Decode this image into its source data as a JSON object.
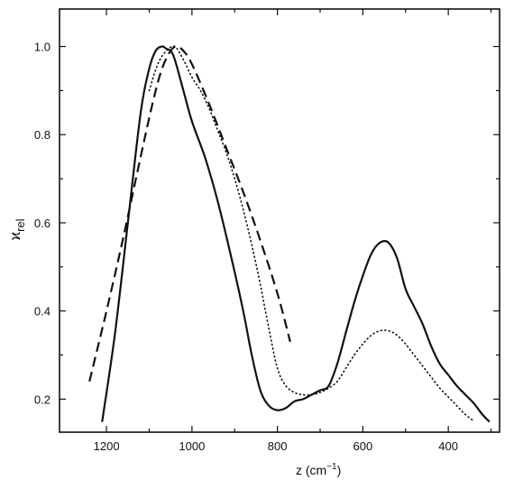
{
  "chart_data": {
    "type": "line",
    "title": "",
    "xlabel": "z (cm⁻¹)",
    "xlabel_parts": {
      "text": "z (cm",
      "sup": "−1",
      "close": ")"
    },
    "ylabel": "ϰrel",
    "ylabel_parts": {
      "symbol": "ϰ",
      "sub": "rel"
    },
    "xlim": [
      1310,
      280
    ],
    "ylim": [
      0.125,
      1.085
    ],
    "x_reversed": true,
    "x_ticks": [
      1200,
      1000,
      800,
      600,
      400
    ],
    "x_minor_ticks": [
      1100,
      900,
      700,
      500,
      300
    ],
    "y_ticks": [
      0.2,
      0.4,
      0.6,
      0.8,
      1.0
    ],
    "y_minor_ticks": [
      0.3,
      0.5,
      0.7,
      0.9
    ],
    "x_tick_labels": [
      "1200",
      "1000",
      "800",
      "600",
      "400"
    ],
    "y_tick_labels": [
      "0.2",
      "0.4",
      "0.6",
      "0.8",
      "1.0"
    ],
    "grid": false,
    "legend": "none",
    "series": [
      {
        "style": "solid",
        "color": "#111111",
        "x": [
          1210,
          1180,
          1150,
          1120,
          1100,
          1085,
          1070,
          1060,
          1050,
          1040,
          1020,
          1000,
          970,
          940,
          910,
          880,
          860,
          840,
          820,
          800,
          780,
          760,
          740,
          720,
          700,
          680,
          660,
          640,
          620,
          600,
          580,
          560,
          540,
          520,
          500,
          480,
          460,
          440,
          420,
          400,
          380,
          360,
          340,
          320,
          305
        ],
        "y": [
          0.15,
          0.35,
          0.6,
          0.85,
          0.95,
          0.99,
          1.0,
          0.995,
          0.99,
          0.97,
          0.9,
          0.83,
          0.75,
          0.65,
          0.53,
          0.4,
          0.3,
          0.22,
          0.185,
          0.175,
          0.18,
          0.195,
          0.2,
          0.21,
          0.22,
          0.23,
          0.28,
          0.35,
          0.42,
          0.48,
          0.53,
          0.555,
          0.555,
          0.52,
          0.45,
          0.41,
          0.37,
          0.32,
          0.28,
          0.255,
          0.23,
          0.21,
          0.19,
          0.165,
          0.15
        ]
      },
      {
        "style": "dotted",
        "color": "#111111",
        "x": [
          1100,
          1080,
          1060,
          1040,
          1020,
          1000,
          980,
          960,
          940,
          920,
          900,
          880,
          860,
          840,
          820,
          800,
          780,
          760,
          740,
          720,
          700,
          680,
          660,
          640,
          620,
          600,
          580,
          560,
          540,
          520,
          500,
          480,
          460,
          440,
          420,
          400,
          380,
          360,
          340
        ],
        "y": [
          0.9,
          0.96,
          0.99,
          1.0,
          0.97,
          0.93,
          0.9,
          0.86,
          0.81,
          0.76,
          0.7,
          0.63,
          0.55,
          0.46,
          0.36,
          0.27,
          0.23,
          0.215,
          0.21,
          0.21,
          0.215,
          0.225,
          0.24,
          0.27,
          0.3,
          0.325,
          0.345,
          0.355,
          0.355,
          0.345,
          0.325,
          0.3,
          0.275,
          0.25,
          0.225,
          0.205,
          0.185,
          0.165,
          0.15
        ]
      },
      {
        "style": "dashed",
        "color": "#111111",
        "x": [
          1240,
          1200,
          1160,
          1120,
          1090,
          1070,
          1050,
          1035,
          1020,
          1000,
          960,
          920,
          880,
          840,
          800,
          770
        ],
        "y": [
          0.24,
          0.4,
          0.57,
          0.75,
          0.88,
          0.95,
          0.99,
          1.0,
          0.99,
          0.96,
          0.87,
          0.77,
          0.67,
          0.56,
          0.44,
          0.33
        ]
      }
    ]
  }
}
